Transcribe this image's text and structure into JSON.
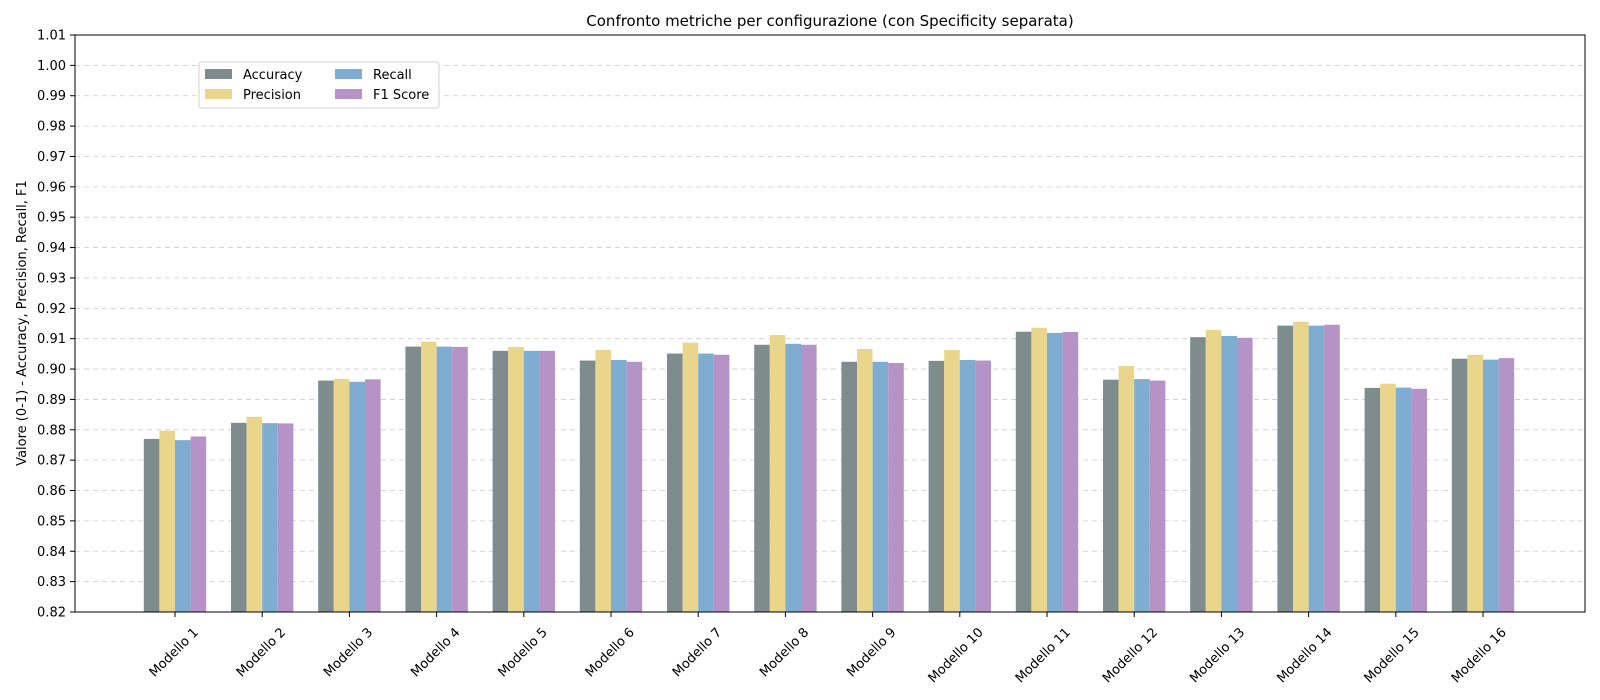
{
  "chart_data": {
    "type": "bar",
    "title": "Confronto metriche per configurazione (con Specificity separata)",
    "xlabel": "",
    "ylabel": "Valore (0-1) - Accuracy, Precision, Recall, F1",
    "ylim": [
      0.82,
      1.01
    ],
    "yticks": [
      "0.82",
      "0.83",
      "0.84",
      "0.85",
      "0.86",
      "0.87",
      "0.88",
      "0.89",
      "0.90",
      "0.91",
      "0.92",
      "0.93",
      "0.94",
      "0.95",
      "0.96",
      "0.97",
      "0.98",
      "0.99",
      "1.00",
      "1.01"
    ],
    "grid": "horizontal dashed",
    "legend_position": "upper-left",
    "categories": [
      "Modello 1",
      "Modello 2",
      "Modello 3",
      "Modello 4",
      "Modello 5",
      "Modello 6",
      "Modello 7",
      "Modello 8",
      "Modello 9",
      "Modello 10",
      "Modello 11",
      "Modello 12",
      "Modello 13",
      "Modello 14",
      "Modello 15",
      "Modello 16"
    ],
    "series": [
      {
        "name": "Accuracy",
        "color": "#7f8c8d",
        "values": [
          0.877,
          0.8823,
          0.8962,
          0.9074,
          0.906,
          0.9028,
          0.9051,
          0.908,
          0.9024,
          0.9027,
          0.9123,
          0.8965,
          0.9105,
          0.9143,
          0.8938,
          0.9034
        ]
      },
      {
        "name": "Precision",
        "color": "#e9d68c",
        "values": [
          0.8797,
          0.8843,
          0.8968,
          0.909,
          0.9073,
          0.9063,
          0.9087,
          0.9112,
          0.9066,
          0.9063,
          0.9136,
          0.901,
          0.9129,
          0.9156,
          0.8952,
          0.9047
        ]
      },
      {
        "name": "Recall",
        "color": "#7fadd1",
        "values": [
          0.8766,
          0.8822,
          0.8958,
          0.9074,
          0.906,
          0.903,
          0.9051,
          0.9083,
          0.9024,
          0.903,
          0.9119,
          0.8967,
          0.9109,
          0.9143,
          0.8939,
          0.9031
        ]
      },
      {
        "name": "F1 Score",
        "color": "#b593c6",
        "values": [
          0.8778,
          0.8821,
          0.8966,
          0.9073,
          0.906,
          0.9024,
          0.9047,
          0.908,
          0.902,
          0.9028,
          0.9122,
          0.8962,
          0.9103,
          0.9146,
          0.8935,
          0.9036
        ]
      }
    ]
  }
}
